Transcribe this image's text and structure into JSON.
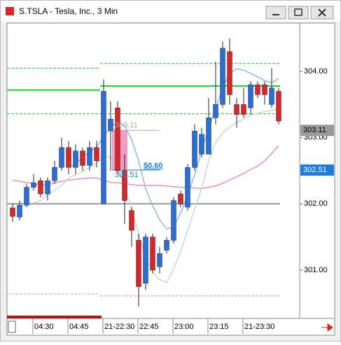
{
  "window": {
    "title": "S.TSLA - Tesla, Inc., 3 Min"
  },
  "chart_data": {
    "type": "candlestick",
    "categories": [
      null,
      null,
      null,
      "04:30",
      null,
      null,
      null,
      null,
      "04:45",
      null,
      null,
      null,
      null,
      "21-22:30",
      null,
      null,
      null,
      null,
      "22:45",
      null,
      null,
      null,
      null,
      "23:00",
      null,
      null,
      null,
      null,
      "23:15",
      null,
      null,
      null,
      null,
      "21-23:30",
      null,
      null,
      null,
      null,
      null
    ],
    "open": [
      301.94,
      301.8,
      301.98,
      302.25,
      302.35,
      302.15,
      302.35,
      302.55,
      302.85,
      302.55,
      302.8,
      302.58,
      302.85,
      302.0,
      303.1,
      303.45,
      302.5,
      301.9,
      301.45,
      300.8,
      301.5,
      301.05,
      301.3,
      301.45,
      302.15,
      301.95,
      302.55,
      302.75,
      302.75,
      303.3,
      303.5,
      304.3,
      303.5,
      303.5,
      303.45,
      303.8,
      303.8,
      303.5,
      303.7
    ],
    "high": [
      302.0,
      302.05,
      302.3,
      302.45,
      302.4,
      302.4,
      302.65,
      303.0,
      302.95,
      302.9,
      302.85,
      302.95,
      302.95,
      303.88,
      303.55,
      303.55,
      302.75,
      301.95,
      301.55,
      301.55,
      301.55,
      301.35,
      301.5,
      302.1,
      302.2,
      302.6,
      303.2,
      303.15,
      303.6,
      304.15,
      304.45,
      304.5,
      303.6,
      303.75,
      303.85,
      303.85,
      303.85,
      304.05,
      303.75
    ],
    "low": [
      301.73,
      301.75,
      301.95,
      302.2,
      302.1,
      302.05,
      302.3,
      302.5,
      302.45,
      302.45,
      302.5,
      302.5,
      302.55,
      302.0,
      302.5,
      302.45,
      301.7,
      301.35,
      300.45,
      300.7,
      300.95,
      300.95,
      301.25,
      301.4,
      301.95,
      301.9,
      302.5,
      302.7,
      302.75,
      303.2,
      303.45,
      303.5,
      303.15,
      303.3,
      303.35,
      303.6,
      303.5,
      303.45,
      303.2
    ],
    "close": [
      301.81,
      301.98,
      302.25,
      302.32,
      302.15,
      302.35,
      302.55,
      302.85,
      302.55,
      302.8,
      302.58,
      302.85,
      302.65,
      303.7,
      303.28,
      302.5,
      302.05,
      301.6,
      300.75,
      301.5,
      301.0,
      301.25,
      301.45,
      302.05,
      302.0,
      302.55,
      303.1,
      303.05,
      303.3,
      303.5,
      304.35,
      303.65,
      303.35,
      303.35,
      303.8,
      303.65,
      303.65,
      303.75,
      303.25
    ],
    "up_color": "#2a6fd6",
    "down_color": "#d9262b",
    "series": [
      {
        "color": "#e58fc4",
        "values": [
          302.36,
          302.34,
          302.32,
          302.31,
          302.28,
          302.29,
          302.32,
          302.34,
          302.36,
          302.37,
          302.38,
          302.39,
          302.39,
          302.36,
          302.32,
          302.32,
          302.31,
          302.29,
          302.28,
          302.28,
          302.28,
          302.28,
          302.27,
          302.26,
          302.25,
          302.25,
          302.24,
          302.23,
          302.25,
          302.27,
          302.31,
          302.36,
          302.41,
          302.46,
          302.52,
          302.57,
          302.65,
          302.76,
          302.88
        ]
      },
      {
        "color": "#c4dcc4",
        "values": [
          null,
          null,
          null,
          302.02,
          302.05,
          302.13,
          302.21,
          302.28,
          302.39,
          302.44,
          302.49,
          302.55,
          302.62,
          302.71,
          302.71,
          302.55,
          302.28,
          301.92,
          301.55,
          301.18,
          300.97,
          300.86,
          300.81,
          301.02,
          301.28,
          301.6,
          301.92,
          302.23,
          302.65,
          302.92,
          303.07,
          303.16,
          303.23,
          303.28,
          303.34,
          303.37,
          303.39,
          303.41,
          303.44
        ]
      },
      {
        "color": "#8fb6e6",
        "values": [
          null,
          null,
          null,
          null,
          null,
          null,
          null,
          null,
          302.55,
          302.6,
          302.71,
          302.78,
          302.86,
          303.02,
          303.16,
          303.23,
          303.18,
          302.97,
          302.65,
          302.23,
          301.97,
          301.76,
          301.62,
          301.65,
          301.86,
          302.13,
          302.44,
          302.81,
          303.13,
          303.44,
          303.76,
          303.97,
          304.04,
          304.02,
          303.97,
          303.92,
          303.86,
          303.83,
          303.89
        ]
      }
    ],
    "levels": [
      {
        "value": 304.05,
        "color": "#2fbf3f",
        "dashed": true,
        "start": 0,
        "end": 12
      },
      {
        "value": 304.12,
        "color": "#2fbf3f",
        "dashed": true,
        "start": 13,
        "end": 38
      },
      {
        "value": 303.72,
        "color": "#22cc33",
        "dashed": false,
        "start": 0,
        "end": 12
      },
      {
        "value": 303.78,
        "color": "#22cc33",
        "dashed": false,
        "start": 13,
        "end": 38
      },
      {
        "value": 303.36,
        "color": "#2fbf3f",
        "dashed": true,
        "start": 0,
        "end": 38
      },
      {
        "value": 300.64,
        "color": "#e58fc4",
        "dashed": true,
        "start": 0,
        "end": 12
      },
      {
        "value": 300.61,
        "color": "#e58fc4",
        "dashed": true,
        "start": 13,
        "end": 38
      },
      {
        "value": 302.0,
        "color": "#999999",
        "dashed": false,
        "start": 0,
        "end": 38
      }
    ],
    "markers": [
      {
        "value": 303.11,
        "color": "#9a9a9a"
      },
      {
        "value": 302.51,
        "color": "#1e7be0"
      }
    ],
    "measure": {
      "label": "$0.60",
      "index": 15
    },
    "ylim": [
      300.27,
      304.73
    ],
    "yticks": [
      {
        "value": 301,
        "label": "301.00"
      },
      {
        "value": 302,
        "label": "302.00"
      },
      {
        "value": 303,
        "label": "303.00"
      },
      {
        "value": 304,
        "label": "304.00"
      }
    ]
  }
}
